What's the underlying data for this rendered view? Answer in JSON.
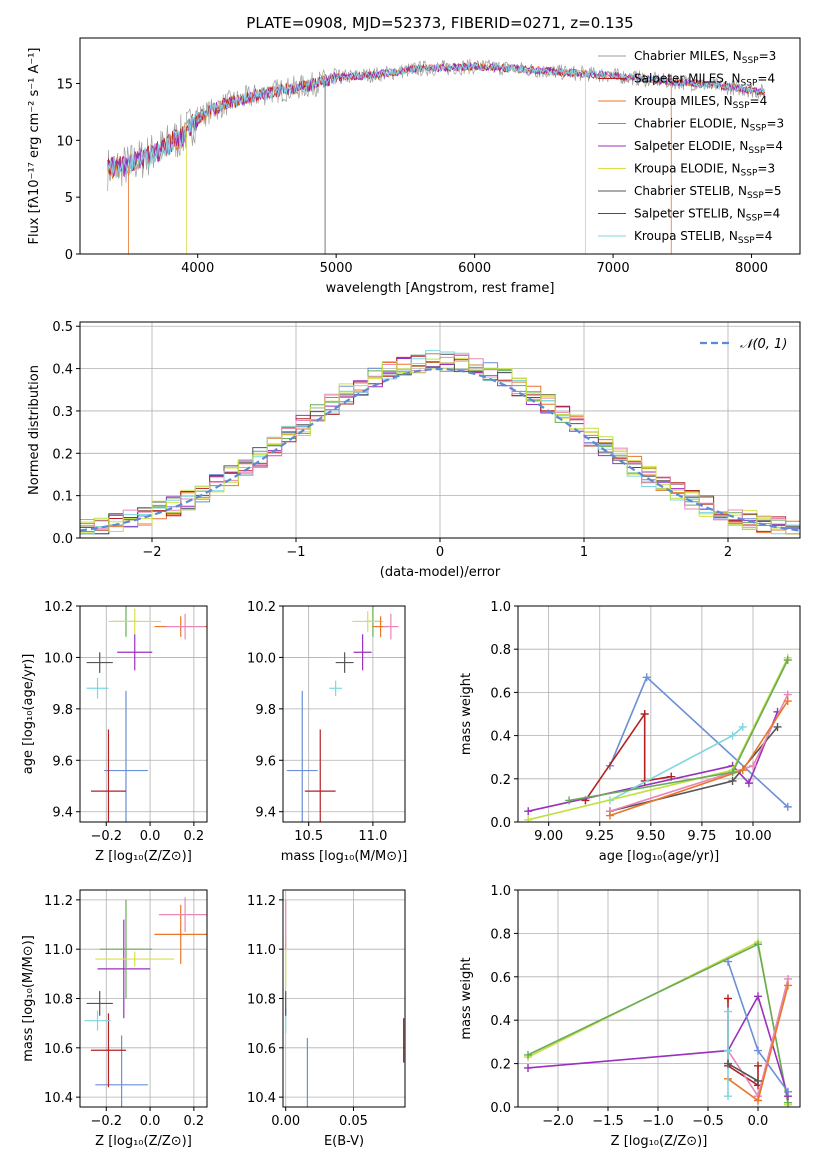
{
  "title": "PLATE=0908, MJD=52373, FIBERID=0271, z=0.135",
  "colors": {
    "c1": "#6b8fd8",
    "c2": "#e8772a",
    "c3": "#9e9e9e",
    "c4": "#6aaa5a",
    "c5": "#9b30c0",
    "c6": "#d8e04a",
    "c7": "#555555",
    "c8": "#b22222",
    "c9": "#7fd6e0",
    "c10": "#e887b8",
    "c11": "#c0e040",
    "gauss": "#5b8ad6"
  },
  "chart_data": [
    {
      "id": "spectrum",
      "type": "line",
      "xlabel": "wavelength [Angstrom, rest frame]",
      "ylabel": "Flux [fλ10⁻¹⁷ erg cm⁻² s⁻¹ A⁻¹]",
      "xlim": [
        3150,
        8350
      ],
      "ylim": [
        0,
        19
      ],
      "xticks": [
        4000,
        5000,
        6000,
        7000,
        8000
      ],
      "yticks": [
        0,
        5,
        10,
        15
      ],
      "legend_position": "top-right",
      "legend": [
        {
          "label": "Chabrier MILES, N",
          "sub": "SSP",
          "tail": "=3",
          "color": "#9e9e9e"
        },
        {
          "label": "Salpeter MILES, N",
          "sub": "SSP",
          "tail": "=4",
          "color": "#b22222"
        },
        {
          "label": "Kroupa MILES, N",
          "sub": "SSP",
          "tail": "=4",
          "color": "#e8772a"
        },
        {
          "label": "Chabrier ELODIE, N",
          "sub": "SSP",
          "tail": "=3",
          "color": "#6aaa5a"
        },
        {
          "label": "Salpeter ELODIE, N",
          "sub": "SSP",
          "tail": "=4",
          "color": "#9b30c0"
        },
        {
          "label": "Kroupa ELODIE, N",
          "sub": "SSP",
          "tail": "=3",
          "color": "#d8e04a"
        },
        {
          "label": "Chabrier STELIB, N",
          "sub": "SSP",
          "tail": "=5",
          "color": "#555555"
        },
        {
          "label": "Salpeter STELIB, N",
          "sub": "SSP",
          "tail": "=4",
          "color": "#b22222"
        },
        {
          "label": "Kroupa STELIB, N",
          "sub": "SSP",
          "tail": "=4",
          "color": "#7fd6e0"
        }
      ],
      "continuum": {
        "x": [
          3350,
          3500,
          3700,
          3900,
          4000,
          4200,
          4500,
          4800,
          5000,
          5300,
          5600,
          6000,
          6300,
          6600,
          7000,
          7300,
          7600,
          7900,
          8100
        ],
        "y": [
          7.5,
          7.8,
          9.0,
          10.5,
          12.0,
          13.2,
          14.2,
          14.8,
          15.5,
          15.8,
          16.3,
          16.5,
          16.3,
          16.0,
          15.7,
          15.3,
          15.0,
          14.6,
          14.2
        ]
      }
    },
    {
      "id": "residual-histogram",
      "type": "area",
      "xlabel": "(data-model)/error",
      "ylabel": "Normed distribution",
      "xlim": [
        -2.5,
        2.5
      ],
      "ylim": [
        0,
        0.51
      ],
      "xticks": [
        -2,
        -1,
        0,
        1,
        2
      ],
      "yticks": [
        0.0,
        0.1,
        0.2,
        0.3,
        0.4,
        0.5
      ],
      "bin_width": 0.1,
      "legend_position": "top-right",
      "gaussian_label": "𝒩(0, 1)",
      "series_colors": [
        "#6b8fd8",
        "#e8772a",
        "#6aaa5a",
        "#9b30c0",
        "#d8e04a",
        "#555555",
        "#b22222",
        "#7fd6e0",
        "#e887b8",
        "#c0e040"
      ]
    },
    {
      "id": "age-vs-Z",
      "type": "scatter",
      "xlabel": "Z [log₁₀(Z/Z⊙)]",
      "ylabel": "age  [log₁₀(age/yr)]",
      "xlim": [
        -0.32,
        0.26
      ],
      "ylim": [
        9.36,
        10.2
      ],
      "xticks": [
        -0.2,
        0.0,
        0.2
      ],
      "yticks": [
        9.4,
        9.6,
        9.8,
        10.0,
        10.2
      ],
      "points": [
        {
          "x": -0.11,
          "y": 9.56,
          "xerr": 0.1,
          "yerr": 0.31,
          "color": "#6b8fd8"
        },
        {
          "x": -0.19,
          "y": 9.48,
          "xerr": 0.08,
          "yerr": 0.24,
          "color": "#b22222"
        },
        {
          "x": -0.23,
          "y": 9.98,
          "xerr": 0.06,
          "yerr": 0.04,
          "color": "#555555"
        },
        {
          "x": -0.24,
          "y": 9.88,
          "xerr": 0.05,
          "yerr": 0.04,
          "color": "#7fd6e0"
        },
        {
          "x": -0.07,
          "y": 10.02,
          "xerr": 0.08,
          "yerr": 0.07,
          "color": "#9b30c0"
        },
        {
          "x": -0.11,
          "y": 10.14,
          "xerr": 0.06,
          "yerr": 0.06,
          "color": "#6aaa5a"
        },
        {
          "x": -0.07,
          "y": 10.14,
          "xerr": 0.12,
          "yerr": 0.05,
          "color": "#d8e04a"
        },
        {
          "x": 0.14,
          "y": 10.12,
          "xerr": 0.12,
          "yerr": 0.04,
          "color": "#e8772a"
        },
        {
          "x": 0.16,
          "y": 10.12,
          "xerr": 0.09,
          "yerr": 0.05,
          "color": "#e887b8"
        }
      ]
    },
    {
      "id": "age-vs-mass",
      "type": "scatter",
      "xlabel": "mass [log₁₀(M/M⊙)]",
      "ylabel": "",
      "xlim": [
        10.3,
        11.25
      ],
      "ylim": [
        9.36,
        10.2
      ],
      "xticks": [
        10.5,
        11.0
      ],
      "yticks": [
        9.4,
        9.6,
        9.8,
        10.0,
        10.2
      ],
      "points": [
        {
          "x": 10.45,
          "y": 9.56,
          "xerr": 0.12,
          "yerr": 0.31,
          "color": "#6b8fd8"
        },
        {
          "x": 10.59,
          "y": 9.48,
          "xerr": 0.12,
          "yerr": 0.24,
          "color": "#b22222"
        },
        {
          "x": 10.78,
          "y": 9.98,
          "xerr": 0.07,
          "yerr": 0.04,
          "color": "#555555"
        },
        {
          "x": 10.71,
          "y": 9.88,
          "xerr": 0.05,
          "yerr": 0.03,
          "color": "#7fd6e0"
        },
        {
          "x": 10.92,
          "y": 10.02,
          "xerr": 0.07,
          "yerr": 0.07,
          "color": "#9b30c0"
        },
        {
          "x": 11.0,
          "y": 10.14,
          "xerr": 0.06,
          "yerr": 0.06,
          "color": "#6aaa5a"
        },
        {
          "x": 10.96,
          "y": 10.14,
          "xerr": 0.12,
          "yerr": 0.04,
          "color": "#d8e04a"
        },
        {
          "x": 11.06,
          "y": 10.12,
          "xerr": 0.06,
          "yerr": 0.04,
          "color": "#e8772a"
        },
        {
          "x": 11.14,
          "y": 10.12,
          "xerr": 0.06,
          "yerr": 0.05,
          "color": "#e887b8"
        }
      ]
    },
    {
      "id": "mass-weight-vs-age",
      "type": "line",
      "xlabel": "age  [log₁₀(age/yr)]",
      "ylabel": "mass weight",
      "xlim": [
        8.85,
        10.23
      ],
      "ylim": [
        0,
        1.0
      ],
      "xticks": [
        9.0,
        9.25,
        9.5,
        9.75,
        10.0
      ],
      "yticks": [
        0.0,
        0.2,
        0.4,
        0.6,
        0.8,
        1.0
      ],
      "series": [
        {
          "color": "#6b8fd8",
          "x": [
            9.3,
            9.48,
            10.17
          ],
          "y": [
            0.26,
            0.67,
            0.07
          ]
        },
        {
          "color": "#b22222",
          "x": [
            9.18,
            9.47,
            9.47,
            9.6
          ],
          "y": [
            0.1,
            0.5,
            0.19,
            0.21
          ]
        },
        {
          "color": "#9b30c0",
          "x": [
            8.9,
            9.9,
            9.98,
            10.12
          ],
          "y": [
            0.05,
            0.26,
            0.18,
            0.51
          ]
        },
        {
          "color": "#7fd6e0",
          "x": [
            9.3,
            9.9,
            9.95
          ],
          "y": [
            0.1,
            0.4,
            0.44
          ]
        },
        {
          "color": "#555555",
          "x": [
            9.3,
            9.9,
            10.12
          ],
          "y": [
            0.05,
            0.19,
            0.44
          ]
        },
        {
          "color": "#e887b8",
          "x": [
            9.3,
            10.0,
            10.17
          ],
          "y": [
            0.05,
            0.26,
            0.59
          ]
        },
        {
          "color": "#e8772a",
          "x": [
            9.3,
            9.95,
            10.17
          ],
          "y": [
            0.03,
            0.24,
            0.56
          ]
        },
        {
          "color": "#c0e040",
          "x": [
            8.9,
            9.9,
            10.17
          ],
          "y": [
            0.01,
            0.24,
            0.76
          ]
        },
        {
          "color": "#6aaa5a",
          "x": [
            9.1,
            9.9,
            10.17
          ],
          "y": [
            0.1,
            0.23,
            0.75
          ]
        }
      ]
    },
    {
      "id": "mass-vs-Z",
      "type": "scatter",
      "xlabel": "Z [log₁₀(Z/Z⊙)]",
      "ylabel": "mass [log₁₀(M/M⊙)]",
      "xlim": [
        -0.32,
        0.26
      ],
      "ylim": [
        10.36,
        11.24
      ],
      "xticks": [
        -0.2,
        0.0,
        0.2
      ],
      "yticks": [
        10.4,
        10.6,
        10.8,
        11.0,
        11.2
      ],
      "points": [
        {
          "x": -0.13,
          "y": 10.45,
          "xerr": 0.12,
          "yerr": 0.2,
          "color": "#6b8fd8"
        },
        {
          "x": -0.19,
          "y": 10.59,
          "xerr": 0.08,
          "yerr": 0.15,
          "color": "#b22222"
        },
        {
          "x": -0.24,
          "y": 10.71,
          "xerr": 0.06,
          "yerr": 0.04,
          "color": "#7fd6e0"
        },
        {
          "x": -0.23,
          "y": 10.78,
          "xerr": 0.06,
          "yerr": 0.05,
          "color": "#555555"
        },
        {
          "x": -0.12,
          "y": 10.92,
          "xerr": 0.12,
          "yerr": 0.2,
          "color": "#9b30c0"
        },
        {
          "x": -0.11,
          "y": 11.0,
          "xerr": 0.12,
          "yerr": 0.2,
          "color": "#6aaa5a"
        },
        {
          "x": -0.07,
          "y": 10.96,
          "xerr": 0.18,
          "yerr": 0.03,
          "color": "#d8e04a"
        },
        {
          "x": 0.14,
          "y": 11.06,
          "xerr": 0.12,
          "yerr": 0.12,
          "color": "#e8772a"
        },
        {
          "x": 0.16,
          "y": 11.14,
          "xerr": 0.12,
          "yerr": 0.07,
          "color": "#e887b8"
        }
      ]
    },
    {
      "id": "mass-vs-EBV",
      "type": "scatter",
      "xlabel": "E(B-V)",
      "ylabel": "",
      "xlim": [
        -0.002,
        0.088
      ],
      "ylim": [
        10.36,
        11.24
      ],
      "xticks": [
        0.0,
        0.05
      ],
      "yticks": [
        10.4,
        10.6,
        10.8,
        11.0,
        11.2
      ],
      "points": [
        {
          "x": 0.016,
          "y": 10.5,
          "xerr": 0,
          "yerr": 0.14,
          "color": "#6b8fd8"
        },
        {
          "x": 0.087,
          "y": 10.63,
          "xerr": 0,
          "yerr": 0.09,
          "color": "#b22222"
        },
        {
          "x": 0.0,
          "y": 10.71,
          "xerr": 0,
          "yerr": 0.05,
          "color": "#7fd6e0"
        },
        {
          "x": 0.0,
          "y": 10.78,
          "xerr": 0,
          "yerr": 0.05,
          "color": "#555555"
        },
        {
          "x": 0.0,
          "y": 10.95,
          "xerr": 0,
          "yerr": 0.1,
          "color": "#d8e04a"
        },
        {
          "x": 0.0,
          "y": 11.1,
          "xerr": 0,
          "yerr": 0.1,
          "color": "#e887b8"
        }
      ]
    },
    {
      "id": "mass-weight-vs-Z",
      "type": "line",
      "xlabel": "Z [log₁₀(Z/Z⊙)]",
      "ylabel": "mass weight",
      "xlim": [
        -2.4,
        0.42
      ],
      "ylim": [
        0,
        1.0
      ],
      "xticks": [
        -2.0,
        -1.5,
        -1.0,
        -0.5,
        0.0
      ],
      "yticks": [
        0.0,
        0.2,
        0.4,
        0.6,
        0.8,
        1.0
      ],
      "series": [
        {
          "color": "#c0e040",
          "x": [
            -2.3,
            0.0,
            0.3
          ],
          "y": [
            0.23,
            0.76,
            0.01
          ]
        },
        {
          "color": "#6aaa5a",
          "x": [
            -2.3,
            0.0,
            0.3
          ],
          "y": [
            0.24,
            0.75,
            0.02
          ]
        },
        {
          "color": "#9b30c0",
          "x": [
            -2.3,
            -0.3,
            0.0,
            0.3
          ],
          "y": [
            0.18,
            0.26,
            0.51,
            0.05
          ]
        },
        {
          "color": "#6b8fd8",
          "x": [
            -0.3,
            0.0,
            0.3
          ],
          "y": [
            0.67,
            0.26,
            0.07
          ]
        },
        {
          "color": "#b22222",
          "x": [
            -0.3,
            -0.3,
            0.0,
            0.0
          ],
          "y": [
            0.5,
            0.19,
            0.1,
            0.19
          ]
        },
        {
          "color": "#e887b8",
          "x": [
            -0.3,
            0.0,
            0.3
          ],
          "y": [
            0.26,
            0.05,
            0.59
          ]
        },
        {
          "color": "#e8772a",
          "x": [
            -0.3,
            0.0,
            0.3
          ],
          "y": [
            0.13,
            0.03,
            0.56
          ]
        },
        {
          "color": "#7fd6e0",
          "x": [
            -0.3,
            -0.3,
            -0.3
          ],
          "y": [
            0.44,
            0.05,
            0.26
          ]
        },
        {
          "color": "#555555",
          "x": [
            -0.3,
            0.0
          ],
          "y": [
            0.2,
            0.12
          ]
        }
      ]
    }
  ]
}
